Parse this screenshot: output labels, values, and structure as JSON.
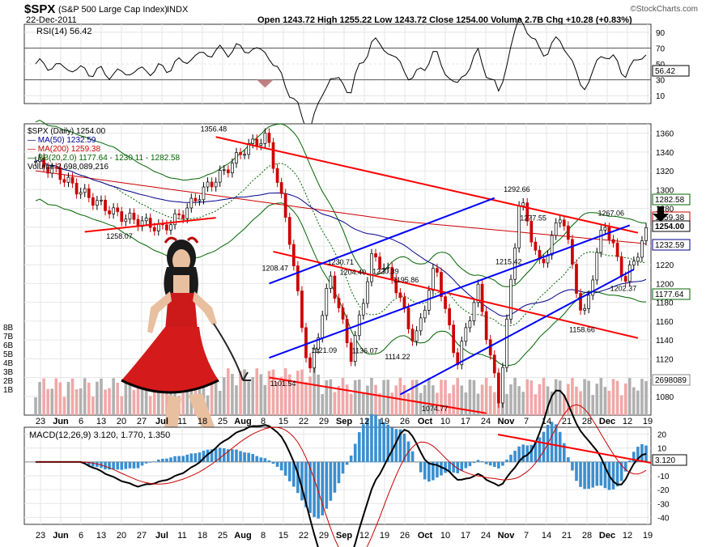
{
  "header": {
    "symbol": "$SPX",
    "name": "(S&P 500 Large Cap Index)",
    "exchange": "INDX",
    "date": "22-Dec-2011",
    "ohlc_line": "Open 1243.72  High 1255.22  Low 1243.72  Close 1254.00  Volume 2.7B  Chg +10.28 (+0.83%)",
    "brand": "©StockCharts.com"
  },
  "rsi": {
    "label": "RSI(14) 56.42",
    "current": "56.42",
    "ticks": [
      "90",
      "70",
      "50",
      "30",
      "10"
    ]
  },
  "price": {
    "legend": [
      "$SPX (Daily) 1254.00",
      "— MA(50) 1232.59",
      "— MA(200) 1259.38",
      "— BB(20,2.0) 1177.64 - 1230.11 - 1282.58",
      "Volume 2,698,089,216"
    ],
    "ticks": [
      "1360",
      "1340",
      "1320",
      "1300",
      "1280",
      "1260",
      "1240",
      "1220",
      "1200",
      "1180",
      "1160",
      "1140",
      "1120",
      "1100",
      "1080"
    ],
    "volume_ticks": [
      "8B",
      "7B",
      "6B",
      "5B",
      "4B",
      "3B",
      "2B",
      "1B"
    ],
    "right_labels": [
      "1282.58",
      "1259.38",
      "1254.00",
      "1232.59",
      "1177.64",
      "2698089"
    ],
    "annotations": [
      "1356.48",
      "1258.07",
      "1208.47",
      "1230.71",
      "1204.40",
      "1220.39",
      "1195.86",
      "1136.07",
      "1121.09",
      "1101.54",
      "1114.22",
      "1074.77",
      "1292.66",
      "1277.55",
      "1215.42",
      "1158.66",
      "1267.06",
      "1202.37"
    ]
  },
  "macd": {
    "label": "MACD(12,26,9) 3.120, 1.770, 1.350",
    "current": "3.120",
    "ticks": [
      "20",
      "10",
      "0",
      "-10",
      "-20",
      "-30",
      "-40"
    ]
  },
  "x_axis": [
    "23",
    "Jun",
    "6",
    "13",
    "20",
    "27",
    "Jul",
    "11",
    "18",
    "25",
    "Aug",
    "8",
    "15",
    "22",
    "29",
    "Sep",
    "12",
    "19",
    "26",
    "Oct",
    "10",
    "17",
    "24",
    "Nov",
    "7",
    "14",
    "21",
    "28",
    "Dec",
    "12",
    "19"
  ],
  "colors": {
    "up": "#000000",
    "down": "#cc0000",
    "ma50": "#00008b",
    "ma200": "#cc0000",
    "bb": "#006400",
    "trend_red": "#ff0000",
    "trend_blue": "#0000ff",
    "vol_up": "#b0b0b0",
    "vol_down": "#f0a8a8",
    "hist": "#3a8fd0"
  },
  "chart_data": {
    "type": "candlestick",
    "instrument": "$SPX (S&P 500 Large Cap Index)",
    "date_range": [
      "23-May-2011",
      "22-Dec-2011"
    ],
    "key_points": [
      {
        "date": "Jul-07",
        "value": 1356.48
      },
      {
        "date": "Jun-17",
        "value": 1258.07
      },
      {
        "date": "Aug-09",
        "value": 1101.54
      },
      {
        "date": "Aug-12",
        "value": 1208.47
      },
      {
        "date": "Aug-19",
        "value": 1121.09
      },
      {
        "date": "Aug-31",
        "value": 1230.71
      },
      {
        "date": "Sep-06",
        "value": 1204.4
      },
      {
        "date": "Sep-12",
        "value": 1136.07
      },
      {
        "date": "Sep-16",
        "value": 1220.39
      },
      {
        "date": "Sep-22",
        "value": 1114.22
      },
      {
        "date": "Sep-27",
        "value": 1195.86
      },
      {
        "date": "Oct-04",
        "value": 1074.77
      },
      {
        "date": "Oct-27",
        "value": 1292.66
      },
      {
        "date": "Nov-01",
        "value": 1215.42
      },
      {
        "date": "Nov-08",
        "value": 1277.55
      },
      {
        "date": "Nov-25",
        "value": 1158.66
      },
      {
        "date": "Dec-07",
        "value": 1267.06
      },
      {
        "date": "Dec-19",
        "value": 1202.37
      },
      {
        "date": "Dec-22",
        "value": 1254.0
      }
    ],
    "ylim": [
      1060,
      1370
    ],
    "rsi_ylim": [
      0,
      100
    ],
    "macd_ylim": [
      -45,
      25
    ]
  }
}
